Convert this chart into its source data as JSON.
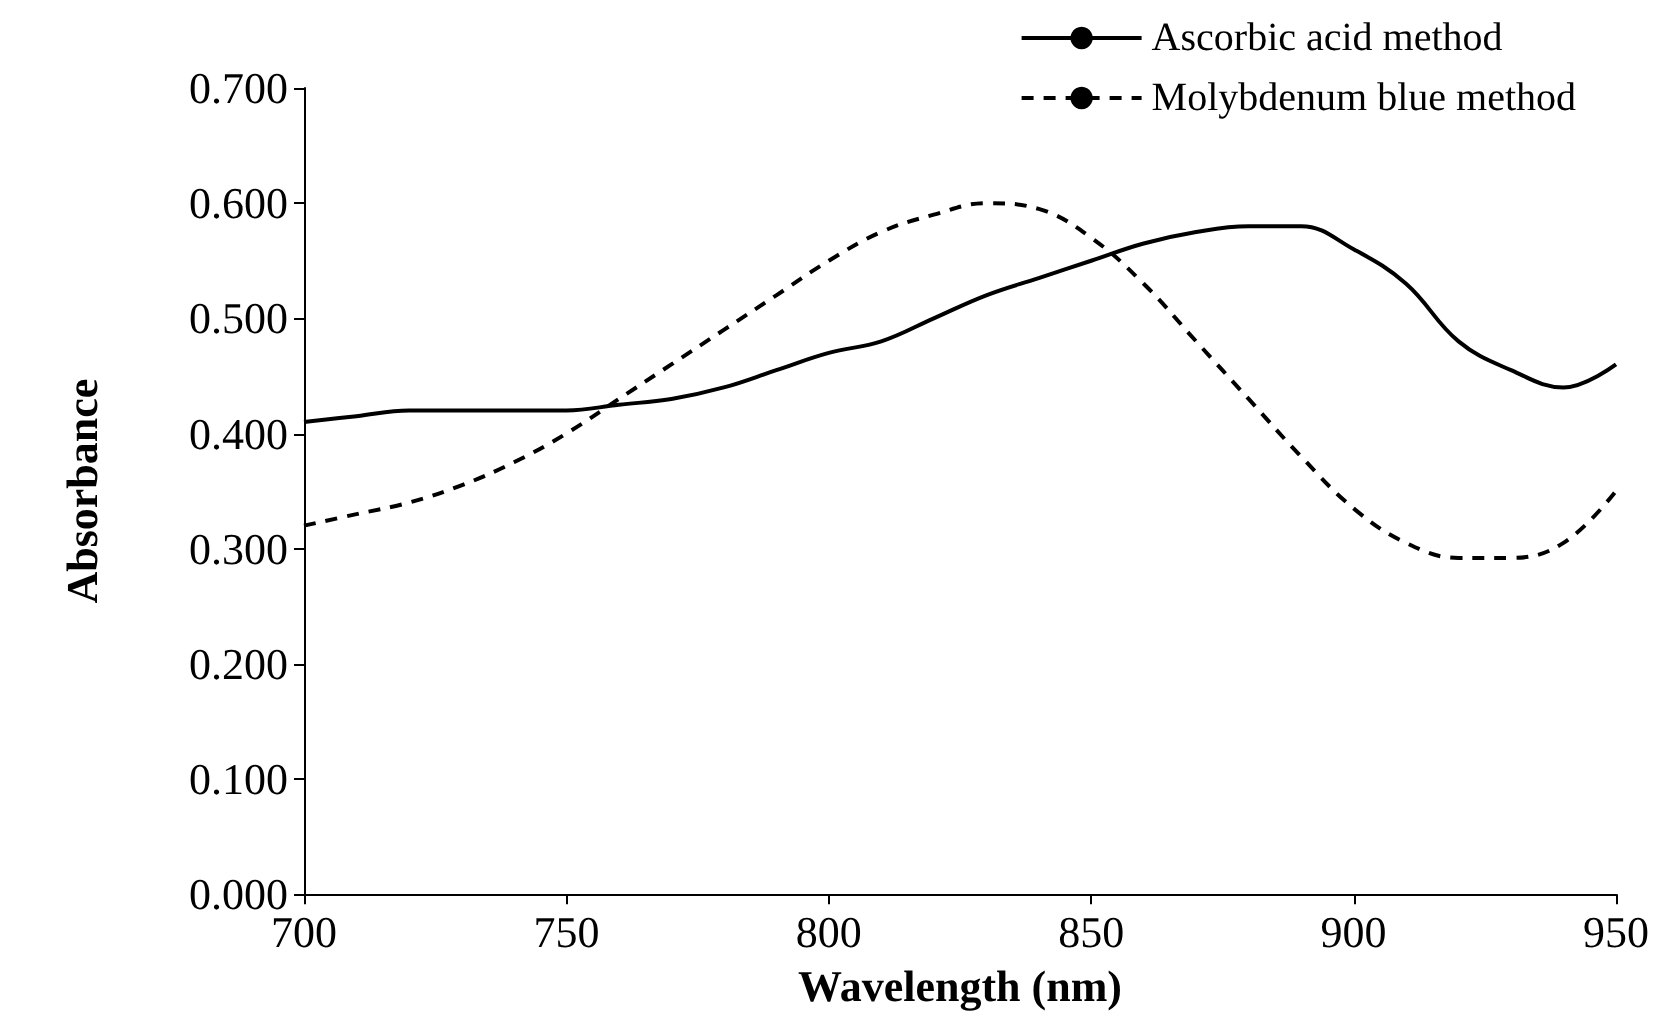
{
  "chart_data": {
    "type": "line",
    "xlabel": "Wavelength (nm)",
    "ylabel": "Absorbance",
    "x": [
      700,
      710,
      720,
      730,
      740,
      750,
      760,
      770,
      780,
      790,
      800,
      810,
      820,
      830,
      840,
      850,
      860,
      870,
      880,
      890,
      900,
      910,
      920,
      930,
      940,
      950
    ],
    "series": [
      {
        "name": "Ascorbic acid method",
        "color": "#000000",
        "line_style": "solid",
        "values": [
          0.41,
          0.415,
          0.42,
          0.42,
          0.42,
          0.42,
          0.425,
          0.43,
          0.44,
          0.455,
          0.47,
          0.48,
          0.5,
          0.52,
          0.535,
          0.55,
          0.565,
          0.575,
          0.58,
          0.58,
          0.56,
          0.53,
          0.48,
          0.455,
          0.44,
          0.46
        ]
      },
      {
        "name": "Molybdenum blue method",
        "color": "#000000",
        "line_style": "dashed",
        "values": [
          0.32,
          0.33,
          0.34,
          0.355,
          0.375,
          0.4,
          0.43,
          0.46,
          0.49,
          0.52,
          0.55,
          0.575,
          0.59,
          0.6,
          0.595,
          0.57,
          0.53,
          0.48,
          0.43,
          0.38,
          0.335,
          0.305,
          0.292,
          0.292,
          0.305,
          0.35
        ]
      }
    ],
    "xlim": [
      700,
      950
    ],
    "xticks": [
      700,
      750,
      800,
      850,
      900,
      950
    ],
    "ylim": [
      0,
      0.7
    ],
    "yticks": [
      {
        "value": 0,
        "label": "0.000"
      },
      {
        "value": 0.1,
        "label": "0.100"
      },
      {
        "value": 0.2,
        "label": "0.200"
      },
      {
        "value": 0.3,
        "label": "0.300"
      },
      {
        "value": 0.4,
        "label": "0.400"
      },
      {
        "value": 0.5,
        "label": "0.500"
      },
      {
        "value": 0.6,
        "label": "0.600"
      },
      {
        "value": 0.7,
        "label": "0.700"
      }
    ],
    "grid": false,
    "legend": "top right",
    "marker": "none"
  }
}
